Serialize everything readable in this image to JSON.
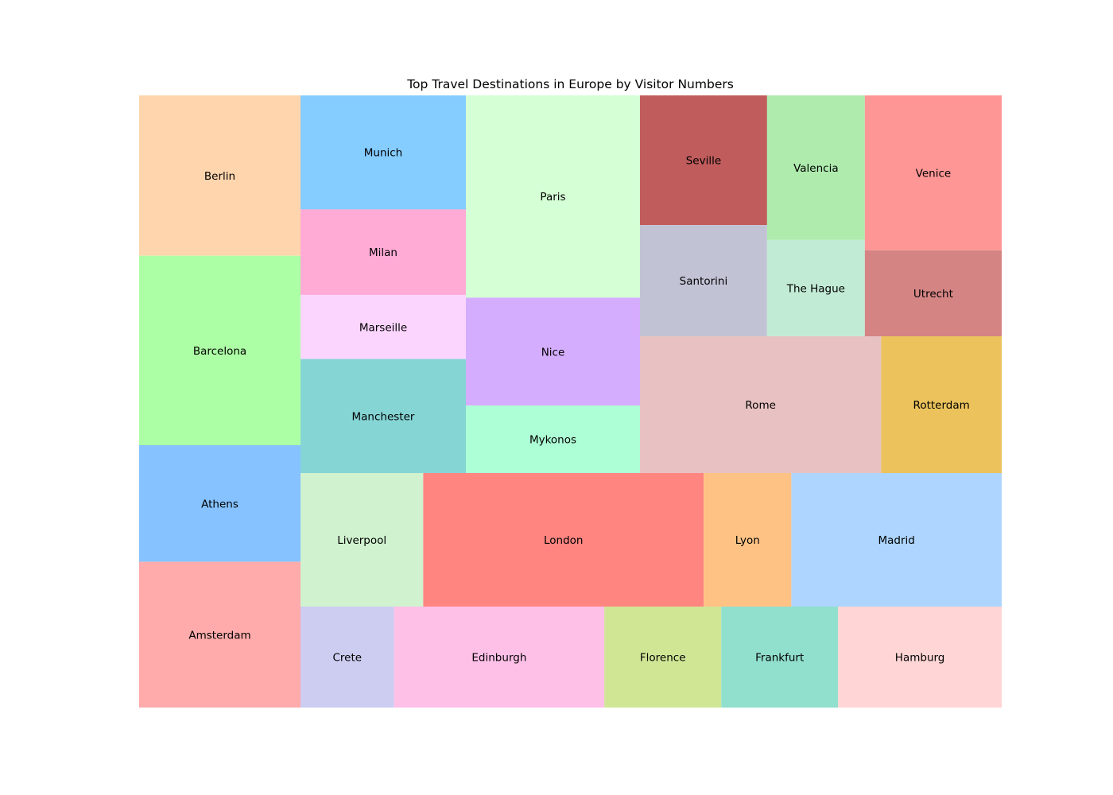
{
  "chart_data": {
    "type": "treemap",
    "title": "Top Travel Destinations in Europe by Visitor Numbers",
    "columns": [
      {
        "cities": [
          {
            "name": "Berlin",
            "value": 6.6,
            "color": "#ffd5ad"
          },
          {
            "name": "Barcelona",
            "value": 7.8,
            "color": "#adffa6"
          },
          {
            "name": "Athens",
            "value": 4.8,
            "color": "#85c2ff"
          },
          {
            "name": "Amsterdam",
            "value": 6.0,
            "color": "#ffabab"
          }
        ]
      },
      {
        "cities": [
          {
            "name": "Munich",
            "value": 4.8,
            "color": "#85ccff"
          },
          {
            "name": "Milan",
            "value": 3.6,
            "color": "#ffabd5"
          },
          {
            "name": "Marseille",
            "value": 2.7,
            "color": "#fcd5ff"
          },
          {
            "name": "Manchester",
            "value": 4.8,
            "color": "#85d5d5"
          }
        ]
      },
      {
        "cities": [
          {
            "name": "Paris",
            "value": 9.0,
            "color": "#d5ffd5"
          },
          {
            "name": "Nice",
            "value": 4.8,
            "color": "#d5adff"
          },
          {
            "name": "Mykonos",
            "value": 3.0,
            "color": "#adffd5"
          }
        ]
      },
      {
        "groups": [
          {
            "cities": [
              {
                "name": "Seville",
                "value": 4.2,
                "color": "#c05c5c"
              },
              {
                "name": "Santorini",
                "value": 3.6,
                "color": "#c2c2d5"
              }
            ]
          },
          {
            "cities": [
              {
                "name": "Valencia",
                "value": 3.6,
                "color": "#aeebad"
              },
              {
                "name": "The Hague",
                "value": 2.4,
                "color": "#c2ebd5"
              }
            ]
          },
          {
            "cities": [
              {
                "name": "Venice",
                "value": 5.4,
                "color": "#ff9696"
              },
              {
                "name": "Utrecht",
                "value": 3.0,
                "color": "#d58484"
              }
            ]
          },
          {
            "cities": [
              {
                "name": "Rome",
                "value": 8.4,
                "color": "#e8c2c2"
              },
              {
                "name": "Rotterdam",
                "value": 4.2,
                "color": "#ebc25c"
              }
            ]
          }
        ]
      },
      {
        "cities": [
          {
            "name": "Liverpool",
            "value": 4.2,
            "color": "#d0f2cf"
          },
          {
            "name": "London",
            "value": 9.6,
            "color": "#ff8581"
          },
          {
            "name": "Lyon",
            "value": 3.0,
            "color": "#ffc285"
          },
          {
            "name": "Madrid",
            "value": 7.2,
            "color": "#add5ff"
          }
        ]
      },
      {
        "cities": [
          {
            "name": "Crete",
            "value": 2.4,
            "color": "#cdcdf2"
          },
          {
            "name": "Edinburgh",
            "value": 5.4,
            "color": "#ffc0e8"
          },
          {
            "name": "Florence",
            "value": 3.0,
            "color": "#d0e695"
          },
          {
            "name": "Frankfurt",
            "value": 3.0,
            "color": "#91dfcd"
          },
          {
            "name": "Hamburg",
            "value": 4.2,
            "color": "#ffd5d5"
          }
        ]
      }
    ]
  }
}
